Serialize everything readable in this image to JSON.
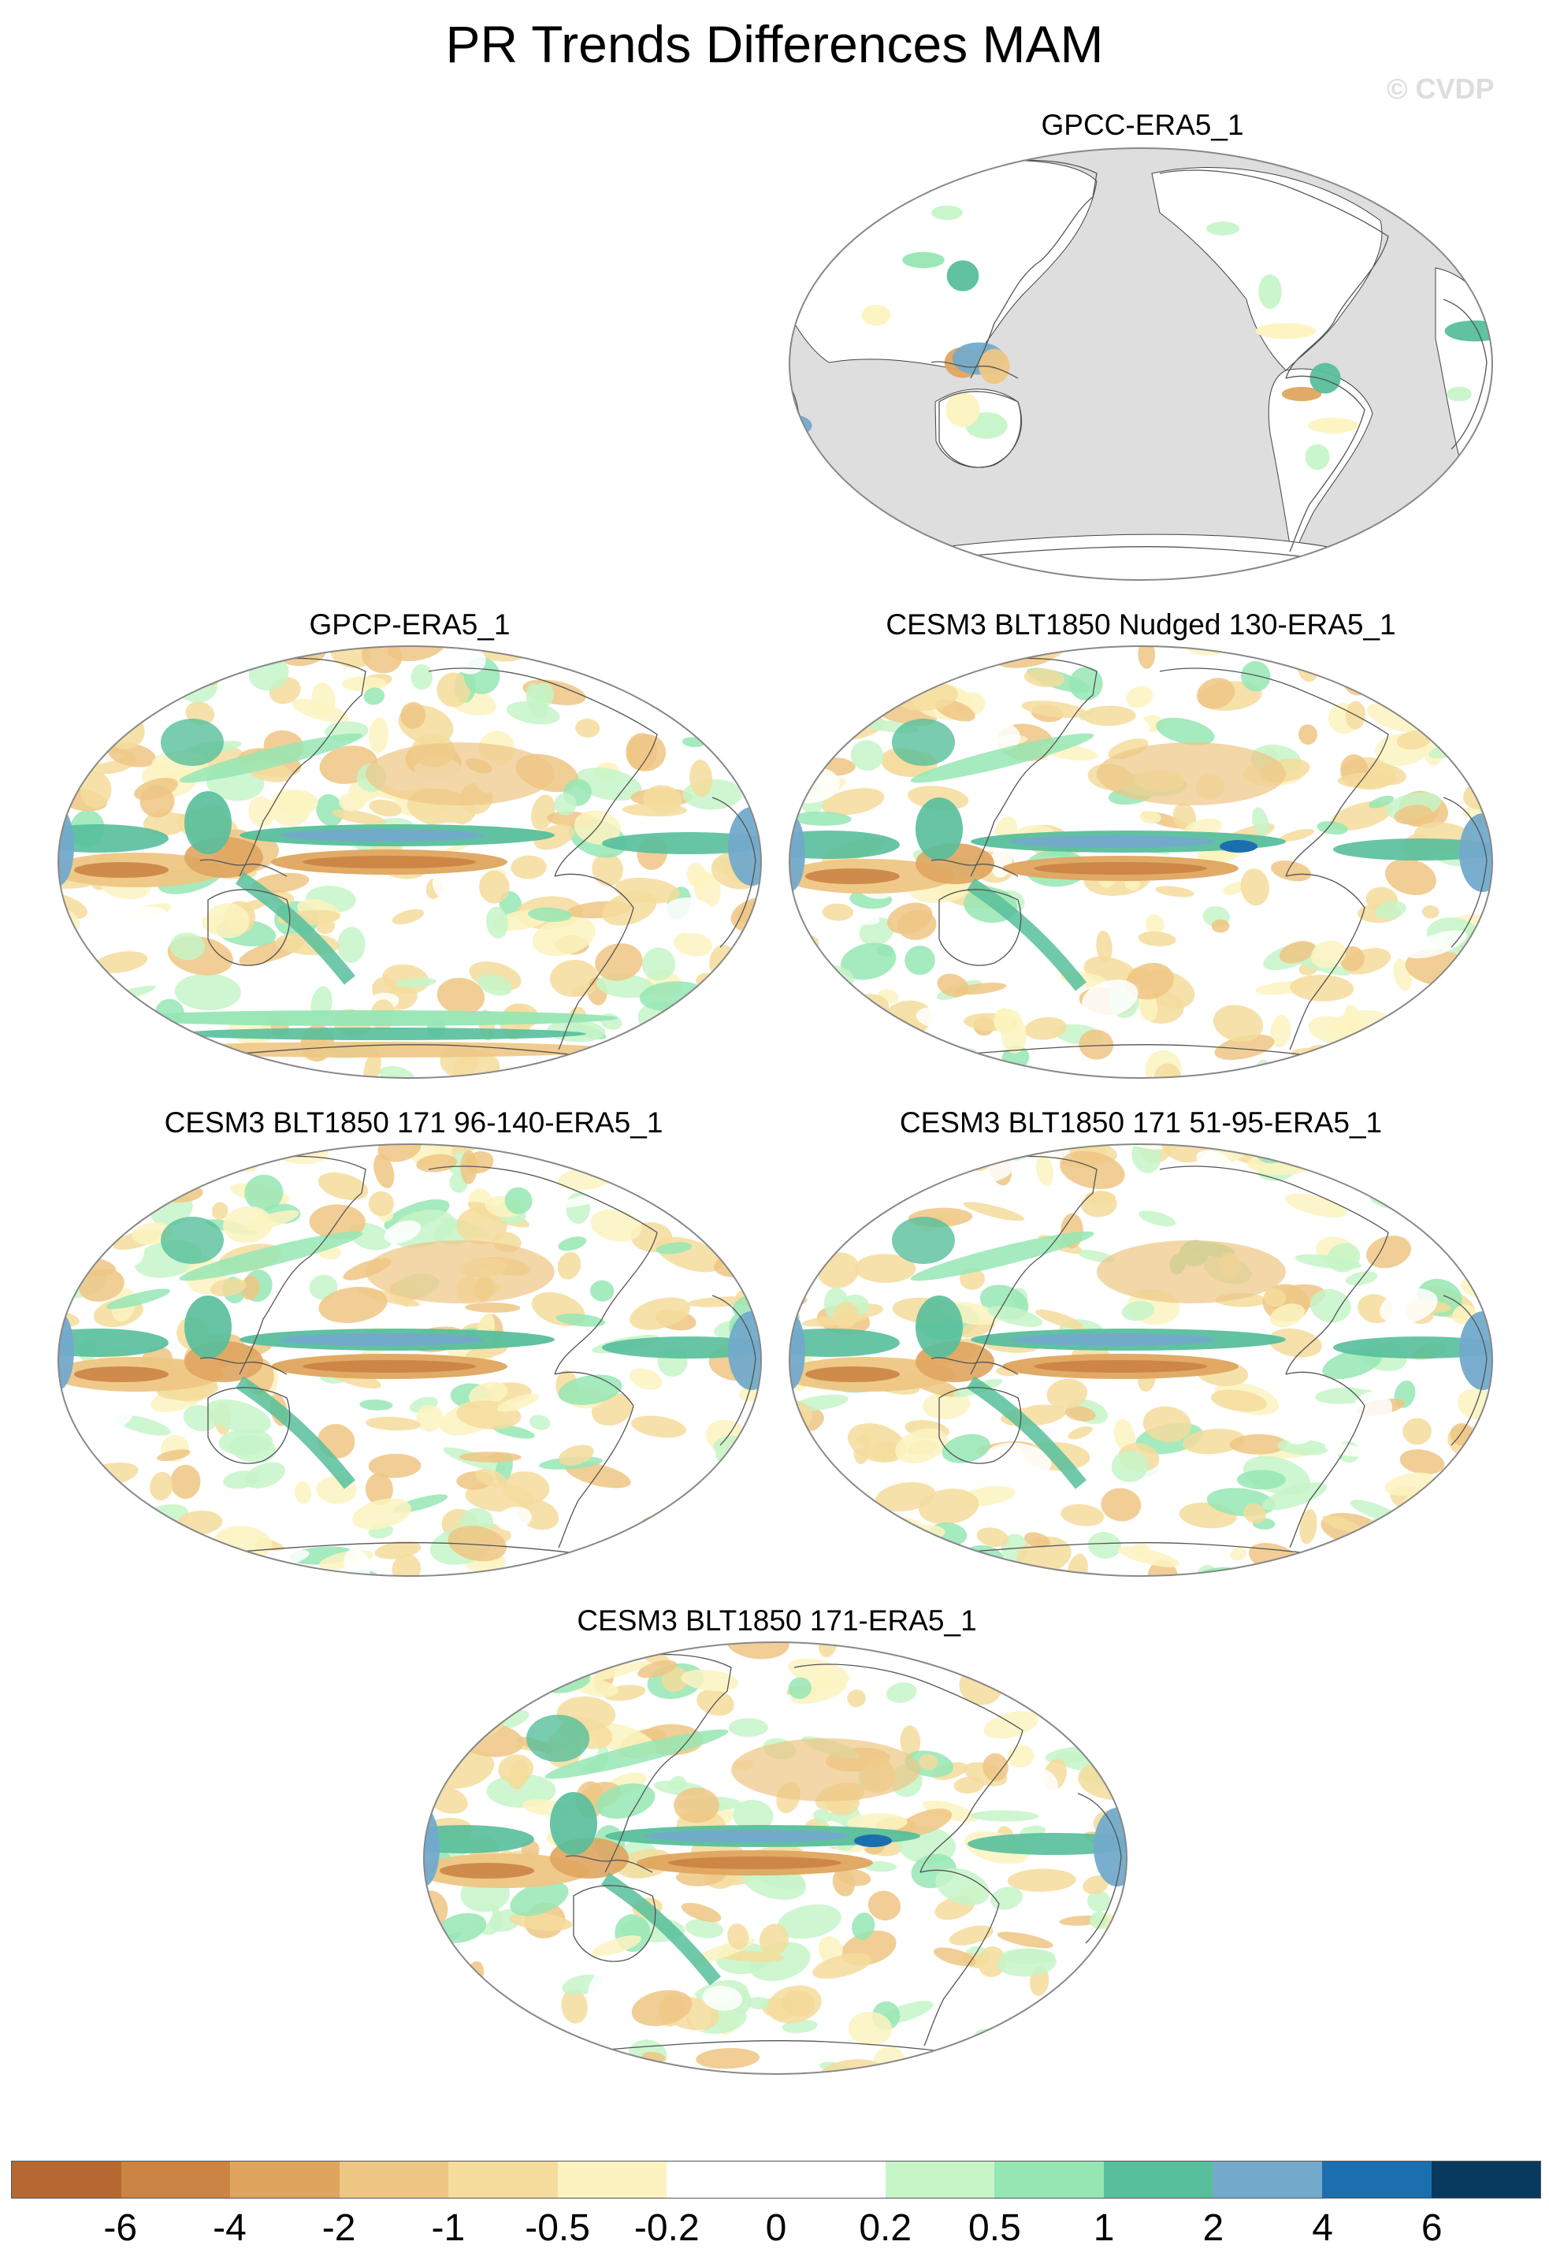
{
  "title": "PR Trends Differences MAM",
  "watermark": "© CVDP",
  "panels": [
    {
      "title": "GPCC-ERA5_1",
      "style": "land"
    },
    {
      "title": "GPCP-ERA5_1",
      "style": "a"
    },
    {
      "title": "CESM3 BLT1850 Nudged 130-ERA5_1",
      "style": "b"
    },
    {
      "title": "CESM3 BLT1850 171 96-140-ERA5_1",
      "style": "c"
    },
    {
      "title": "CESM3 BLT1850 171 51-95-ERA5_1",
      "style": "d"
    },
    {
      "title": "CESM3 BLT1850 171-ERA5_1",
      "style": "e"
    }
  ],
  "colorbar": {
    "colors": [
      "#b5682f",
      "#cb8444",
      "#dfa55f",
      "#eec684",
      "#f5dc9c",
      "#fcf3c0",
      "#ffffff",
      "#ffffff",
      "#c6f5c8",
      "#96e6b4",
      "#57bf9b",
      "#73aacb",
      "#1c6faf",
      "#073a5e"
    ],
    "labels": [
      "-6",
      "-4",
      "-2",
      "-1",
      "-0.5",
      "-0.2",
      "0",
      "0.2",
      "0.5",
      "1",
      "2",
      "4",
      "6"
    ]
  },
  "land_mask_color": "#dedede"
}
